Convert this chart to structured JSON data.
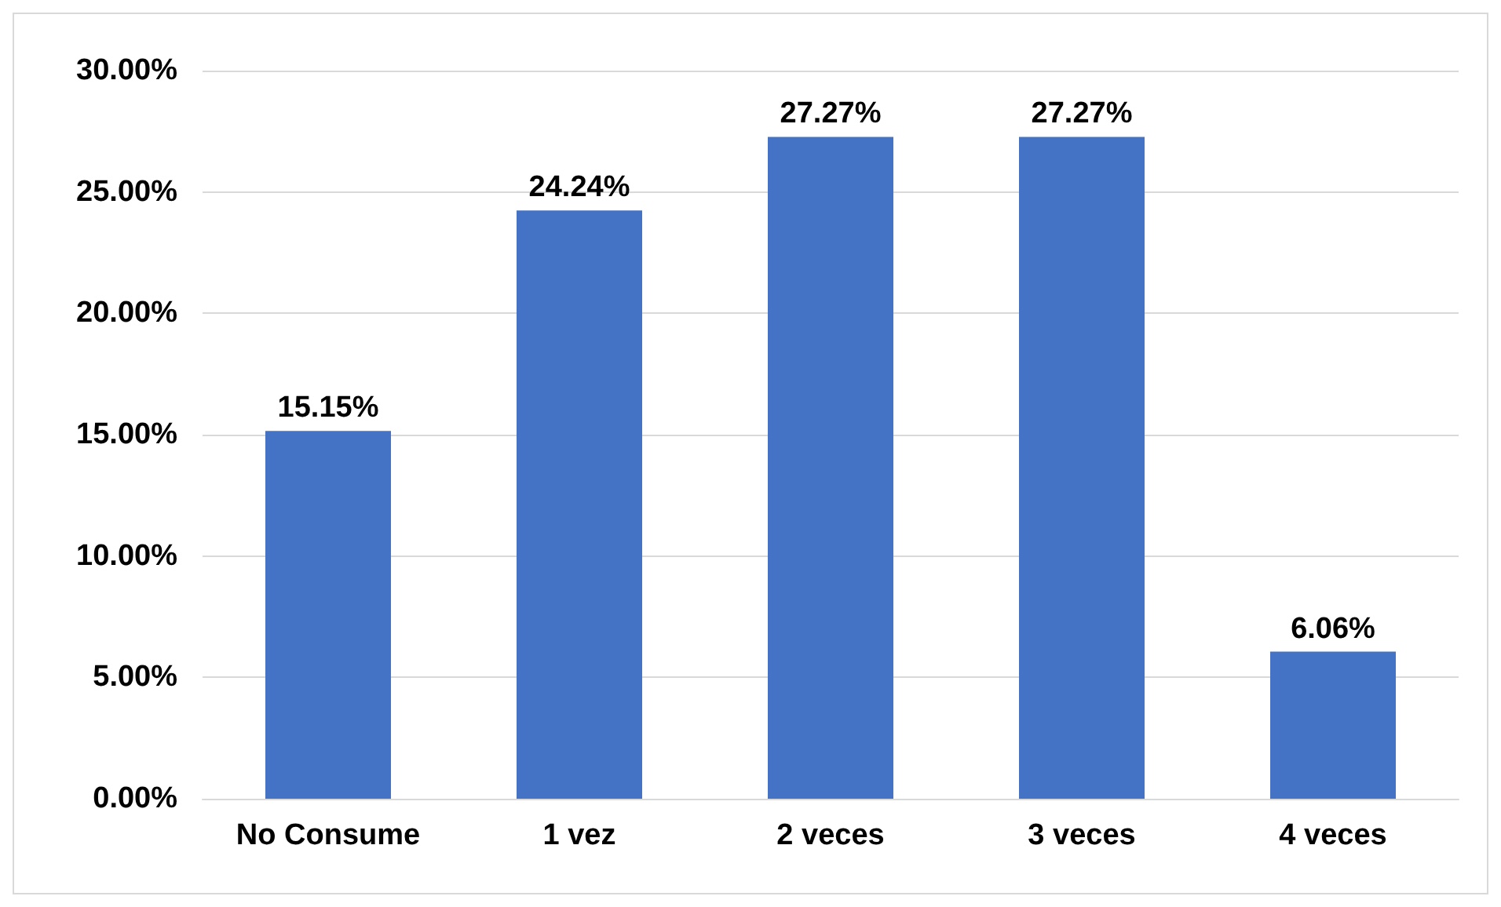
{
  "chart_data": {
    "type": "bar",
    "categories": [
      "No Consume",
      "1 vez",
      "2 veces",
      "3 veces",
      "4 veces"
    ],
    "values": [
      15.15,
      24.24,
      27.27,
      27.27,
      6.06
    ],
    "value_labels": [
      "15.15%",
      "24.24%",
      "27.27%",
      "27.27%",
      "6.06%"
    ],
    "color": "#4472c4",
    "ylim": [
      0,
      30
    ],
    "yticks": [
      {
        "value": 0,
        "label": "0.00%"
      },
      {
        "value": 5,
        "label": "5.00%"
      },
      {
        "value": 10,
        "label": "10.00%"
      },
      {
        "value": 15,
        "label": "15.00%"
      },
      {
        "value": 20,
        "label": "20.00%"
      },
      {
        "value": 25,
        "label": "25.00%"
      },
      {
        "value": 30,
        "label": "30.00%"
      }
    ],
    "grid": "y"
  }
}
